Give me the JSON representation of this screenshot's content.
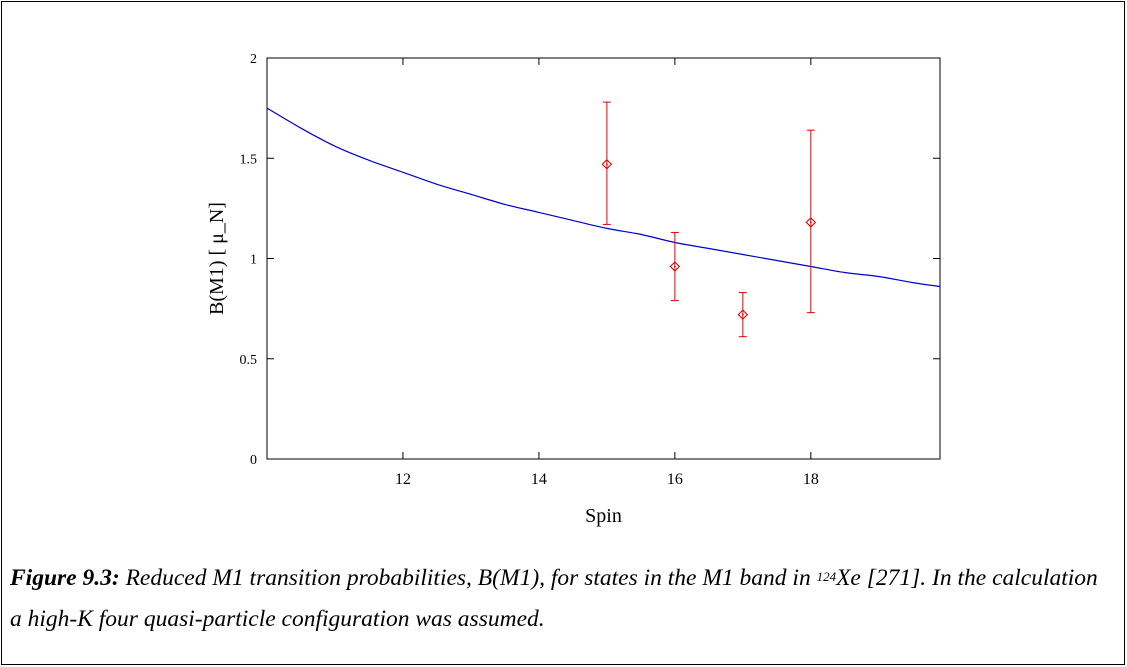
{
  "chart_data": {
    "type": "scatter",
    "xlabel": "Spin",
    "ylabel": "B(M1) [ μ_N]",
    "xlim": [
      10,
      19.9
    ],
    "ylim": [
      0,
      2
    ],
    "x_ticks": [
      12,
      14,
      16,
      18
    ],
    "x_tick_labels": [
      "12",
      "14",
      "16",
      "18"
    ],
    "y_ticks": [
      0,
      0.5,
      1,
      1.5,
      2
    ],
    "y_tick_labels": [
      "0",
      "0.5",
      "1",
      "1.5",
      "2"
    ],
    "grid": false,
    "series": [
      {
        "kind": "points_with_error_bars",
        "color": "#e60000",
        "marker": "diamond",
        "points": [
          {
            "x": 15,
            "y": 1.47,
            "y_low": 1.17,
            "y_high": 1.78
          },
          {
            "x": 16,
            "y": 0.96,
            "y_low": 0.79,
            "y_high": 1.13
          },
          {
            "x": 17,
            "y": 0.72,
            "y_low": 0.61,
            "y_high": 0.83
          },
          {
            "x": 18,
            "y": 1.18,
            "y_low": 0.73,
            "y_high": 1.64
          }
        ]
      },
      {
        "kind": "line",
        "color": "#0000cc",
        "x": [
          10,
          10.5,
          11,
          11.5,
          12,
          12.5,
          13,
          13.5,
          14,
          14.5,
          15,
          15.5,
          16,
          16.5,
          17,
          17.5,
          18,
          18.5,
          19,
          19.5,
          19.9
        ],
        "y": [
          1.75,
          1.65,
          1.56,
          1.49,
          1.43,
          1.37,
          1.32,
          1.27,
          1.23,
          1.19,
          1.15,
          1.12,
          1.08,
          1.05,
          1.02,
          0.99,
          0.96,
          0.93,
          0.91,
          0.88,
          0.86
        ]
      }
    ]
  },
  "caption": {
    "label": "Figure 9.3:",
    "text_before_sup": " Reduced M1 transition probabilities, B(M1), for states in the M1 band in ",
    "superscript": "124",
    "text_after_sup": "Xe [271]. In the calculation a high-K four quasi-particle configuration was assumed."
  }
}
